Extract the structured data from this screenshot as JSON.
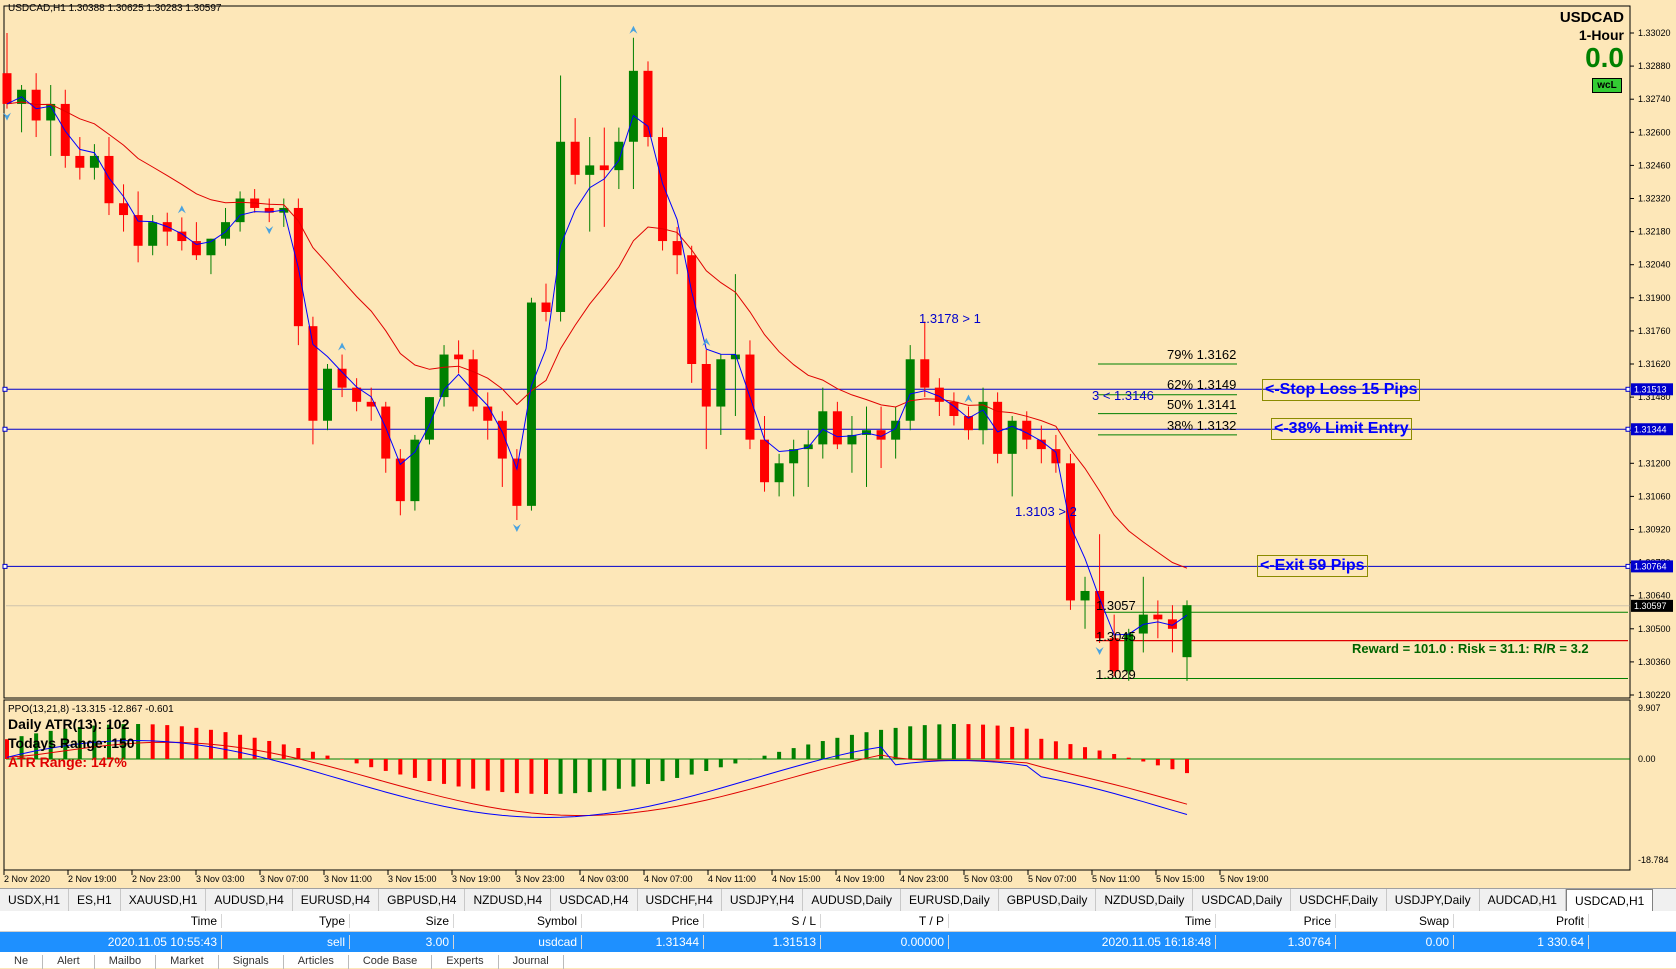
{
  "chart": {
    "header_label": "USDCAD,H1  1.30388 1.30625 1.30283 1.30597",
    "symbol": "USDCAD",
    "timeframe": "1-Hour",
    "big_value": "0.0",
    "badge": "wcL",
    "colors": {
      "background": "#fde7b8",
      "bull_candle": "#008000",
      "bear_candle": "#ff0000",
      "fast_ma": "#0000ff",
      "slow_ma": "#e00000",
      "hline": "#0000cc",
      "fractal": "#4aa3df"
    },
    "price_ticks": [
      "1.33020",
      "1.32880",
      "1.32740",
      "1.32600",
      "1.32460",
      "1.32320",
      "1.32180",
      "1.32040",
      "1.31900",
      "1.31760",
      "1.31620",
      "1.31480",
      "1.31340",
      "1.31200",
      "1.31060",
      "1.30920",
      "1.30780",
      "1.30640",
      "1.30500",
      "1.30360",
      "1.30220"
    ],
    "time_ticks": [
      "2 Nov 2020",
      "2 Nov 19:00",
      "2 Nov 23:00",
      "3 Nov 03:00",
      "3 Nov 07:00",
      "3 Nov 11:00",
      "3 Nov 15:00",
      "3 Nov 19:00",
      "3 Nov 23:00",
      "4 Nov 03:00",
      "4 Nov 07:00",
      "4 Nov 11:00",
      "4 Nov 15:00",
      "4 Nov 19:00",
      "4 Nov 23:00",
      "5 Nov 03:00",
      "5 Nov 07:00",
      "5 Nov 11:00",
      "5 Nov 15:00",
      "5 Nov 19:00"
    ],
    "price_boxes": [
      "1.31513",
      "1.31344",
      "1.30764",
      "1.30597"
    ],
    "annotations": {
      "stop_loss": "<-Stop Loss 15 Pips",
      "limit_entry": "<-38% Limit Entry",
      "exit": "<-Exit 59 Pips",
      "reward_risk": "Reward = 101.0 : Risk = 31.1: R/R = 3.2",
      "fib79": "79% 1.3162",
      "fib62": "62% 1.3149",
      "fib50": "50% 1.3141",
      "fib38": "38% 1.3132",
      "label_high": "1.3178 > 1",
      "label_3": "3 < 1.3146",
      "label_low": "1.3103 > 2",
      "lvl_1": "1.3057",
      "lvl_2": "1.3045",
      "lvl_3": "1.3029"
    }
  },
  "indicator": {
    "label": "PPO(13,21,8) -13.315 -12.867 -0.601",
    "atr": "Daily ATR(13): 102",
    "range": "Todays Range: 150",
    "atr_range": "ATR Range: 147%",
    "ticks": [
      "9.907",
      "0.00",
      "-18.784"
    ]
  },
  "tabs": [
    "USDX,H1",
    "ES,H1",
    "XAUUSD,H1",
    "AUDUSD,H4",
    "EURUSD,H4",
    "GBPUSD,H4",
    "NZDUSD,H4",
    "USDCAD,H4",
    "USDCHF,H4",
    "USDJPY,H4",
    "AUDUSD,Daily",
    "EURUSD,Daily",
    "GBPUSD,Daily",
    "NZDUSD,Daily",
    "USDCAD,Daily",
    "USDCHF,Daily",
    "USDJPY,Daily",
    "AUDCAD,H1",
    "USDCAD,H1"
  ],
  "trades": {
    "headers": [
      "Time",
      "Type",
      "Size",
      "Symbol",
      "Price",
      "S / L",
      "T / P",
      "Time",
      "Price",
      "Swap",
      "Profit"
    ],
    "row": [
      "2020.11.05 10:55:43",
      "sell",
      "3.00",
      "usdcad",
      "1.31344",
      "1.31513",
      "0.00000",
      "2020.11.05 16:18:48",
      "1.30764",
      "0.00",
      "1 330.64"
    ]
  },
  "bottom_tabs": [
    "Ne",
    "Alert",
    "Mailbo",
    "Market",
    "Signals",
    "Articles",
    "Code Base",
    "Experts",
    "Journal"
  ]
}
